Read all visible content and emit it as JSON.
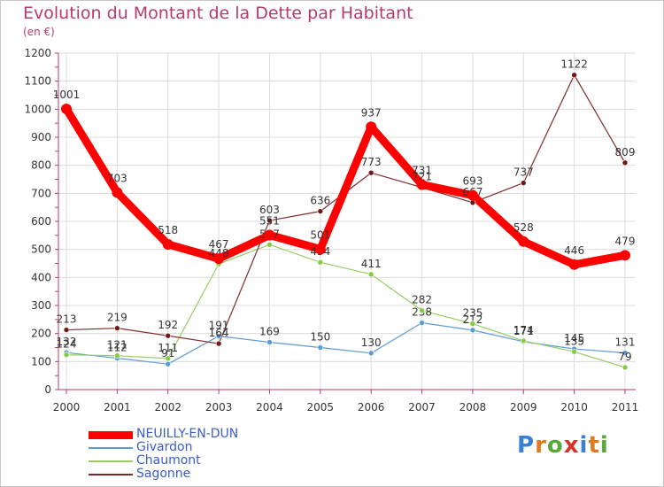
{
  "title": "Evolution du Montant de la Dette par Habitant",
  "subtitle": "(en €)",
  "logo_text": "Proxiti",
  "chart_data": {
    "type": "line",
    "title": "Evolution du Montant de la Dette par Habitant",
    "subtitle": "(en €)",
    "ylim": [
      0,
      1200
    ],
    "yticks": [
      0,
      100,
      200,
      300,
      400,
      500,
      600,
      700,
      800,
      900,
      1000,
      1100,
      1200
    ],
    "grid": true,
    "legend_position": "bottom-left",
    "categories": [
      "2000",
      "2001",
      "2002",
      "2003",
      "2004",
      "2005",
      "2006",
      "2007",
      "2008",
      "2009",
      "2010",
      "2011"
    ],
    "series": [
      {
        "name": "NEUILLY-EN-DUN",
        "color": "#ff0000",
        "values": [
          1001,
          703,
          518,
          467,
          551,
          501,
          937,
          731,
          693,
          528,
          446,
          479
        ]
      },
      {
        "name": "Givardon",
        "color": "#5b9bd5",
        "values": [
          132,
          112,
          91,
          191,
          169,
          150,
          130,
          238,
          212,
          171,
          145,
          131
        ]
      },
      {
        "name": "Chaumont",
        "color": "#99cc66",
        "values": [
          124,
          121,
          111,
          448,
          517,
          454,
          411,
          282,
          235,
          174,
          135,
          79
        ]
      },
      {
        "name": "Sagonne",
        "color": "#7f2a2a",
        "values": [
          213,
          219,
          192,
          164,
          603,
          636,
          773,
          721,
          667,
          737,
          1122,
          809
        ]
      }
    ]
  }
}
